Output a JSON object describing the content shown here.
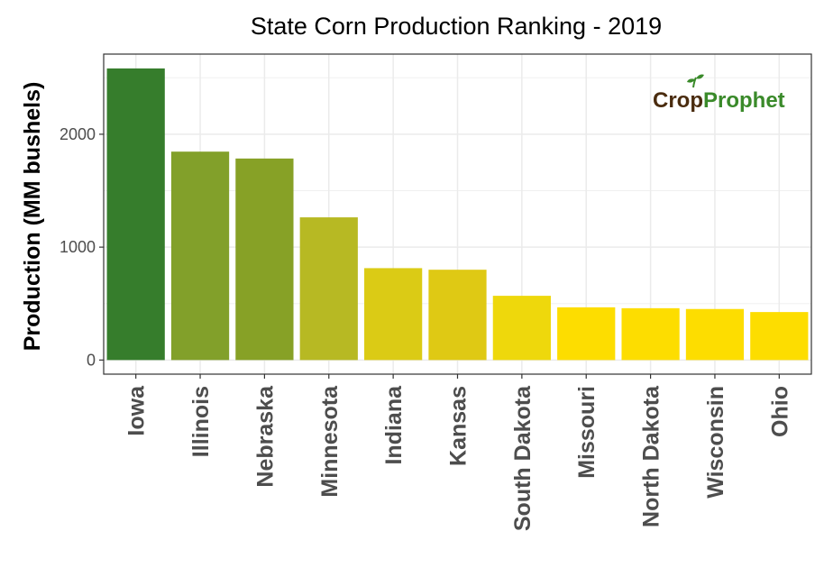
{
  "chart_data": {
    "type": "bar",
    "title": "State Corn Production Ranking - 2019",
    "xlabel": "",
    "ylabel": "Production (MM bushels)",
    "categories": [
      "Iowa",
      "Illinois",
      "Nebraska",
      "Minnesota",
      "Indiana",
      "Kansas",
      "South Dakota",
      "Missouri",
      "North Dakota",
      "Wisconsin",
      "Ohio"
    ],
    "values": [
      2583,
      1846,
      1785,
      1264,
      814,
      800,
      569,
      467,
      459,
      452,
      425
    ],
    "colors": [
      "#367d2c",
      "#82a02a",
      "#87a126",
      "#b7b923",
      "#dbcb15",
      "#dfc914",
      "#eed80c",
      "#fddd00",
      "#fddd00",
      "#fddd00",
      "#fddd00"
    ],
    "ylim": [
      -125,
      2710
    ],
    "yticks": [
      0,
      1000,
      2000
    ],
    "grid": true,
    "legend": "none"
  },
  "logo": {
    "part1": "Crop",
    "part2": "Prophet",
    "sprout_color": "#3a8a2a"
  }
}
